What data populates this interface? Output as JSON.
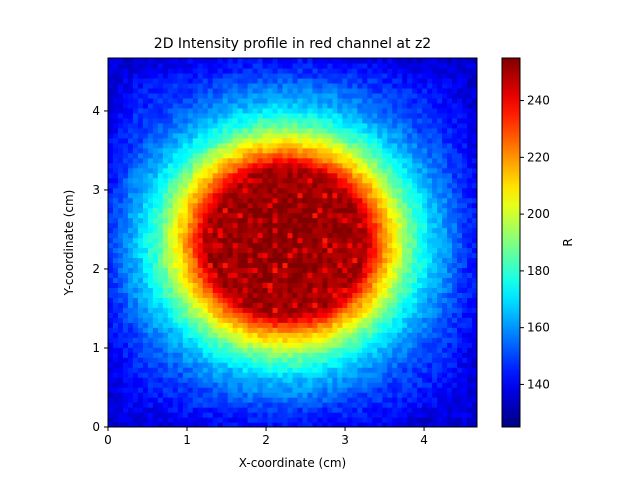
{
  "chart_data": {
    "type": "heatmap",
    "title": "2D Intensity profile in red channel at z2",
    "xlabel": "X-coordinate (cm)",
    "ylabel": "Y-coordinate (cm)",
    "xlim": [
      0,
      4.67
    ],
    "ylim": [
      0,
      4.67
    ],
    "xticks": [
      0,
      1,
      2,
      3,
      4
    ],
    "yticks": [
      0,
      1,
      2,
      3,
      4
    ],
    "colorbar": {
      "label": "R",
      "colormap": "jet",
      "min": 125,
      "max": 255,
      "ticks": [
        140,
        160,
        180,
        200,
        220,
        240
      ]
    },
    "intensity_profile": {
      "shape": "roughly circular saturated core with smooth radial falloff",
      "center": [
        2.25,
        2.35
      ],
      "core_radius_cm": 1.05,
      "peak_value": 255,
      "background_value": 140,
      "radial_profile": [
        {
          "r_cm": 0.0,
          "value": 255
        },
        {
          "r_cm": 1.0,
          "value": 250
        },
        {
          "r_cm": 1.2,
          "value": 225
        },
        {
          "r_cm": 1.4,
          "value": 205
        },
        {
          "r_cm": 1.6,
          "value": 185
        },
        {
          "r_cm": 1.9,
          "value": 165
        },
        {
          "r_cm": 2.3,
          "value": 150
        },
        {
          "r_cm": 3.0,
          "value": 140
        }
      ]
    }
  }
}
